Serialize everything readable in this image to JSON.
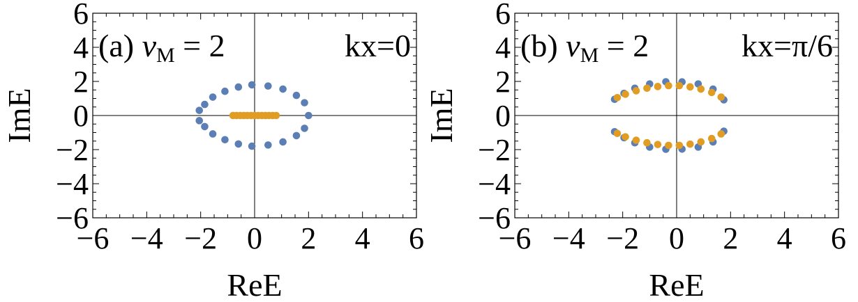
{
  "chart_data": [
    {
      "type": "scatter",
      "panel": "(a)",
      "label_prefix": "(a) ",
      "label_nu": "ν",
      "label_sub": "M",
      "label_rest": " = 2",
      "kx_label": "kx=0",
      "xlabel": "ReE",
      "ylabel": "ImE",
      "xlim": [
        -6,
        6
      ],
      "ylim": [
        -6,
        6
      ],
      "xticks": [
        -6,
        -4,
        -2,
        0,
        2,
        4,
        6
      ],
      "yticks": [
        -6,
        -4,
        -2,
        0,
        2,
        4,
        6
      ],
      "xtick_labels": [
        "−6",
        "−4",
        "−2",
        "0",
        "2",
        "4",
        "6"
      ],
      "ytick_labels": [
        "−6",
        "−4",
        "−2",
        "0",
        "2",
        "4",
        "6"
      ],
      "series": [
        {
          "color": "#5b7fb5",
          "points": [
            [
              2.0,
              0.0
            ],
            [
              1.85,
              0.75
            ],
            [
              1.55,
              1.18
            ],
            [
              1.05,
              1.55
            ],
            [
              0.5,
              1.73
            ],
            [
              -0.1,
              1.8
            ],
            [
              -0.6,
              1.67
            ],
            [
              -1.1,
              1.42
            ],
            [
              -1.55,
              1.08
            ],
            [
              -1.85,
              0.65
            ],
            [
              -2.05,
              0.3
            ],
            [
              -2.05,
              -0.3
            ],
            [
              -1.85,
              -0.65
            ],
            [
              -1.55,
              -1.08
            ],
            [
              -1.1,
              -1.42
            ],
            [
              -0.6,
              -1.67
            ],
            [
              -0.1,
              -1.8
            ],
            [
              0.5,
              -1.73
            ],
            [
              1.05,
              -1.55
            ],
            [
              1.55,
              -1.18
            ],
            [
              1.85,
              -0.75
            ]
          ]
        },
        {
          "color": "#e19c24",
          "points": [
            [
              -0.8,
              0.0
            ],
            [
              -0.67,
              0.0
            ],
            [
              -0.53,
              0.0
            ],
            [
              -0.4,
              0.0
            ],
            [
              -0.27,
              0.0
            ],
            [
              -0.13,
              0.0
            ],
            [
              0.0,
              0.0
            ],
            [
              0.13,
              0.0
            ],
            [
              0.27,
              0.0
            ],
            [
              0.4,
              0.0
            ],
            [
              0.53,
              0.0
            ],
            [
              0.67,
              0.0
            ],
            [
              0.8,
              0.0
            ]
          ]
        }
      ]
    },
    {
      "type": "scatter",
      "panel": "(b)",
      "label_prefix": "(b) ",
      "label_nu": "ν",
      "label_sub": "M",
      "label_rest": " = 2",
      "kx_label": "kx=π/6",
      "xlabel": "ReE",
      "ylabel": "ImE",
      "xlim": [
        -6,
        6
      ],
      "ylim": [
        -6,
        6
      ],
      "xticks": [
        -6,
        -4,
        -2,
        0,
        2,
        4,
        6
      ],
      "yticks": [
        -6,
        -4,
        -2,
        0,
        2,
        4,
        6
      ],
      "xtick_labels": [
        "−6",
        "−4",
        "−2",
        "0",
        "2",
        "4",
        "6"
      ],
      "ytick_labels": [
        "−6",
        "−4",
        "−2",
        "0",
        "2",
        "4",
        "6"
      ],
      "series": [
        {
          "color": "#5b7fb5",
          "points": [
            [
              -2.3,
              0.95
            ],
            [
              -1.95,
              1.3
            ],
            [
              -1.55,
              1.6
            ],
            [
              -1.0,
              1.85
            ],
            [
              -0.4,
              1.98
            ],
            [
              0.2,
              1.97
            ],
            [
              0.8,
              1.85
            ],
            [
              1.35,
              1.55
            ],
            [
              1.75,
              0.92
            ],
            [
              -2.3,
              -0.95
            ],
            [
              -1.95,
              -1.3
            ],
            [
              -1.55,
              -1.6
            ],
            [
              -1.0,
              -1.85
            ],
            [
              -0.4,
              -1.98
            ],
            [
              0.2,
              -1.97
            ],
            [
              0.8,
              -1.85
            ],
            [
              1.35,
              -1.55
            ],
            [
              1.75,
              -0.92
            ]
          ]
        },
        {
          "color": "#e19c24",
          "points": [
            [
              -2.2,
              1.05
            ],
            [
              -1.9,
              1.25
            ],
            [
              -1.5,
              1.45
            ],
            [
              -1.1,
              1.6
            ],
            [
              -0.7,
              1.7
            ],
            [
              -0.3,
              1.75
            ],
            [
              0.1,
              1.75
            ],
            [
              0.5,
              1.68
            ],
            [
              0.9,
              1.55
            ],
            [
              1.3,
              1.35
            ],
            [
              1.65,
              1.08
            ],
            [
              -2.2,
              -1.05
            ],
            [
              -1.9,
              -1.25
            ],
            [
              -1.5,
              -1.45
            ],
            [
              -1.1,
              -1.6
            ],
            [
              -0.7,
              -1.7
            ],
            [
              -0.3,
              -1.75
            ],
            [
              0.1,
              -1.75
            ],
            [
              0.5,
              -1.68
            ],
            [
              0.9,
              -1.55
            ],
            [
              1.3,
              -1.35
            ],
            [
              1.65,
              -1.08
            ]
          ]
        }
      ]
    }
  ]
}
